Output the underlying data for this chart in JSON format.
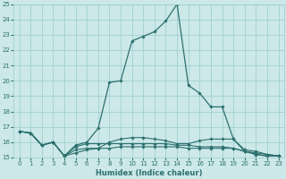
{
  "xlabel": "Humidex (Indice chaleur)",
  "xlim": [
    -0.5,
    23.5
  ],
  "ylim": [
    15,
    25
  ],
  "yticks": [
    15,
    16,
    17,
    18,
    19,
    20,
    21,
    22,
    23,
    24,
    25
  ],
  "xticks": [
    0,
    1,
    2,
    3,
    4,
    5,
    6,
    7,
    8,
    9,
    10,
    11,
    12,
    13,
    14,
    15,
    16,
    17,
    18,
    19,
    20,
    21,
    22,
    23
  ],
  "bg_color": "#cce8e8",
  "grid_color": "#99cccc",
  "line_color": "#2d7070",
  "series": [
    {
      "x": [
        0,
        1,
        2,
        3,
        4,
        5,
        6,
        7,
        8,
        9,
        10,
        11,
        12,
        13,
        14,
        15,
        16,
        17,
        18,
        19,
        20,
        21,
        22,
        23
      ],
      "y": [
        16.7,
        16.6,
        15.8,
        16.0,
        15.1,
        15.8,
        16.0,
        16.9,
        19.9,
        20.0,
        22.6,
        22.9,
        23.2,
        23.9,
        25.0,
        19.7,
        19.2,
        18.3,
        18.3,
        16.2,
        15.4,
        15.2,
        15.1,
        15.1
      ],
      "marker": true,
      "lw": 0.9
    },
    {
      "x": [
        0,
        1,
        2,
        3,
        4,
        5,
        6,
        7,
        8,
        9,
        10,
        11,
        12,
        13,
        14,
        15,
        16,
        17,
        18,
        19,
        20,
        21,
        22,
        23
      ],
      "y": [
        16.7,
        16.6,
        15.8,
        16.0,
        15.1,
        15.7,
        15.9,
        15.9,
        15.9,
        15.9,
        15.9,
        15.9,
        15.9,
        15.9,
        15.8,
        15.8,
        15.7,
        15.7,
        15.7,
        15.6,
        15.4,
        15.2,
        15.1,
        15.1
      ],
      "marker": true,
      "lw": 0.8
    },
    {
      "x": [
        0,
        1,
        2,
        3,
        4,
        5,
        6,
        7,
        8,
        9,
        10,
        11,
        12,
        13,
        14,
        15,
        16,
        17,
        18,
        19,
        20,
        21,
        22,
        23
      ],
      "y": [
        16.7,
        16.6,
        15.8,
        16.0,
        15.1,
        15.5,
        15.6,
        15.6,
        15.6,
        15.7,
        15.7,
        15.7,
        15.7,
        15.7,
        15.7,
        15.6,
        15.6,
        15.6,
        15.6,
        15.6,
        15.4,
        15.3,
        15.2,
        15.1
      ],
      "marker": true,
      "lw": 0.8
    },
    {
      "x": [
        0,
        1,
        2,
        3,
        4,
        5,
        6,
        7,
        8,
        9,
        10,
        11,
        12,
        13,
        14,
        15,
        16,
        17,
        18,
        19,
        20,
        21,
        22,
        23
      ],
      "y": [
        16.7,
        16.6,
        15.8,
        16.0,
        15.1,
        15.3,
        15.5,
        15.6,
        16.0,
        16.2,
        16.3,
        16.3,
        16.2,
        16.1,
        15.9,
        15.9,
        16.1,
        16.2,
        16.2,
        16.2,
        15.5,
        15.4,
        15.2,
        15.1
      ],
      "marker": true,
      "lw": 0.8
    }
  ]
}
